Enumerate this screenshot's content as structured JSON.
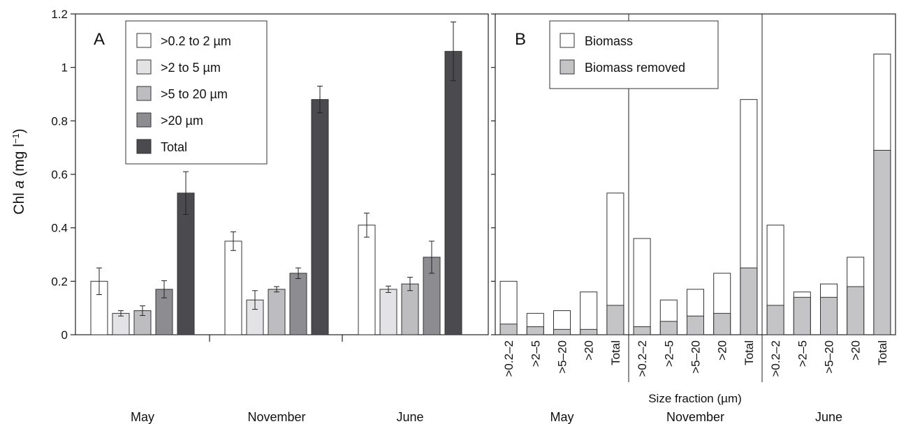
{
  "chart_data": [
    {
      "panel": "A",
      "type": "bar",
      "ylabel_main": "Chl ",
      "ylabel_italic": "a",
      "ylabel_unit": " (mg l",
      "ylabel_sup": "−1",
      "ylabel_close": ")",
      "ylim": [
        0,
        1.2
      ],
      "yticks": [
        "0",
        "0.2",
        "0.4",
        "0.6",
        "0.8",
        "1",
        "1.2"
      ],
      "ytick_values": [
        0,
        0.2,
        0.4,
        0.6,
        0.8,
        1.0,
        1.2
      ],
      "categories": [
        "May",
        "November",
        "June"
      ],
      "legend_position": "top-left",
      "error_bars": true,
      "series": [
        {
          "name": ">0.2 to 2 µm",
          "color": "#ffffff",
          "values": [
            0.2,
            0.35,
            0.41
          ],
          "errors": [
            0.05,
            0.035,
            0.045
          ]
        },
        {
          "name": ">2 to 5 µm",
          "color": "#e3e3e5",
          "values": [
            0.08,
            0.13,
            0.17
          ],
          "errors": [
            0.01,
            0.035,
            0.012
          ]
        },
        {
          "name": ">5 to 20 µm",
          "color": "#bdbdc0",
          "values": [
            0.09,
            0.17,
            0.19
          ],
          "errors": [
            0.018,
            0.01,
            0.025
          ]
        },
        {
          "name": ">20 µm",
          "color": "#8d8d91",
          "values": [
            0.17,
            0.23,
            0.29
          ],
          "errors": [
            0.032,
            0.02,
            0.06
          ]
        },
        {
          "name": "Total",
          "color": "#4b4a4f",
          "values": [
            0.53,
            0.88,
            1.06
          ],
          "errors": [
            0.08,
            0.05,
            0.11
          ]
        }
      ]
    },
    {
      "panel": "B",
      "type": "bar",
      "stacked": true,
      "ylim": [
        0,
        1.2
      ],
      "xlabel": "Size fraction (µm)",
      "legend_position": "top-left",
      "categories": [
        ">0.2–2",
        ">2–5",
        ">5–20",
        ">20",
        "Total"
      ],
      "groups": [
        "May",
        "November",
        "June"
      ],
      "series": [
        {
          "name": "Biomass",
          "color": "#ffffff",
          "values": [
            [
              0.2,
              0.08,
              0.09,
              0.16,
              0.53
            ],
            [
              0.36,
              0.13,
              0.17,
              0.23,
              0.88
            ],
            [
              0.41,
              0.16,
              0.19,
              0.29,
              1.05
            ]
          ]
        },
        {
          "name": "Biomass removed",
          "color": "#c4c4c6",
          "values": [
            [
              0.04,
              0.03,
              0.02,
              0.02,
              0.11
            ],
            [
              0.03,
              0.05,
              0.07,
              0.08,
              0.25
            ],
            [
              0.11,
              0.14,
              0.14,
              0.18,
              0.69
            ]
          ]
        }
      ]
    }
  ]
}
